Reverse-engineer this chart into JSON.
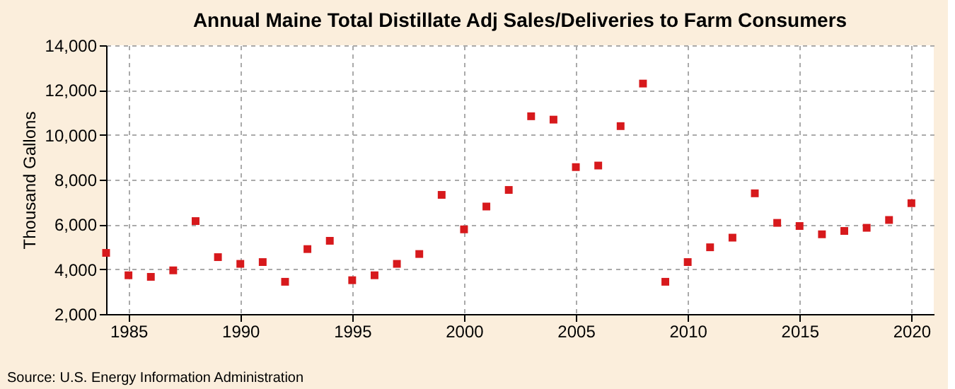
{
  "chart_data": {
    "type": "scatter",
    "title": "Annual Maine Total Distillate Adj Sales/Deliveries to Farm Consumers",
    "ylabel": "Thousand Gallons",
    "annotations": [
      "Source: U.S. Energy Information Administration"
    ],
    "x": [
      1984,
      1985,
      1986,
      1987,
      1988,
      1989,
      1990,
      1991,
      1992,
      1993,
      1994,
      1995,
      1996,
      1997,
      1998,
      1999,
      2000,
      2001,
      2002,
      2003,
      2004,
      2005,
      2006,
      2007,
      2008,
      2009,
      2010,
      2011,
      2012,
      2013,
      2014,
      2015,
      2016,
      2017,
      2018,
      2019,
      2020
    ],
    "series": [
      {
        "color": "#d7191c",
        "values": [
          4730,
          3730,
          3660,
          3950,
          6150,
          4540,
          4240,
          4320,
          3440,
          4900,
          5270,
          3510,
          3730,
          4240,
          4680,
          7320,
          5780,
          6800,
          7540,
          10830,
          10680,
          8560,
          8630,
          10390,
          12290,
          3440,
          4320,
          4980,
          5410,
          7390,
          6070,
          5930,
          5560,
          5710,
          5850,
          6200,
          6950
        ]
      }
    ],
    "xlim": [
      1984,
      2021
    ],
    "xticks": [
      1985,
      1990,
      1995,
      2000,
      2005,
      2010,
      2015,
      2020
    ],
    "ylim": [
      2000,
      14000
    ],
    "yticks": [
      {
        "value": 2000,
        "label": "2,000"
      },
      {
        "value": 4000,
        "label": "4,000"
      },
      {
        "value": 6000,
        "label": "6,000"
      },
      {
        "value": 8000,
        "label": "8,000"
      },
      {
        "value": 10000,
        "label": "10,000"
      },
      {
        "value": 12000,
        "label": "12,000"
      },
      {
        "value": 14000,
        "label": "14,000"
      }
    ],
    "grid": true,
    "marker": "square",
    "legend": false
  }
}
